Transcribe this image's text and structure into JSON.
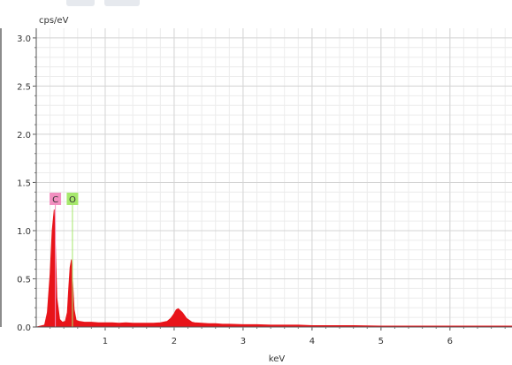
{
  "chart_data": {
    "type": "area",
    "ylabel": "cps/eV",
    "xlabel": "keV",
    "xlim": [
      0.0,
      6.9
    ],
    "ylim": [
      0.0,
      3.1
    ],
    "x_ticks": [
      1,
      2,
      3,
      4,
      5,
      6
    ],
    "y_ticks": [
      0.0,
      0.5,
      1.0,
      1.5,
      2.0,
      2.5,
      3.0
    ],
    "y_tick_labels": [
      "0.0",
      "0.5",
      "1.0",
      "1.5",
      "2.0",
      "2.5",
      "3.0"
    ],
    "grid": true,
    "series": [
      {
        "color": "#e8141a",
        "x": [
          0.0,
          0.12,
          0.16,
          0.2,
          0.23,
          0.26,
          0.28,
          0.3,
          0.34,
          0.38,
          0.42,
          0.45,
          0.47,
          0.49,
          0.51,
          0.53,
          0.55,
          0.58,
          0.62,
          0.7,
          0.8,
          0.9,
          1.0,
          1.1,
          1.2,
          1.3,
          1.4,
          1.5,
          1.6,
          1.7,
          1.8,
          1.9,
          1.95,
          2.0,
          2.03,
          2.06,
          2.09,
          2.12,
          2.15,
          2.18,
          2.22,
          2.26,
          2.3,
          2.4,
          2.5,
          2.6,
          2.7,
          2.8,
          3.0,
          3.2,
          3.4,
          3.6,
          3.8,
          4.0,
          4.3,
          4.6,
          5.0,
          5.4,
          5.8,
          6.2,
          6.6,
          6.9
        ],
        "values": [
          0.0,
          0.02,
          0.15,
          0.55,
          1.0,
          1.22,
          0.8,
          0.3,
          0.08,
          0.05,
          0.06,
          0.15,
          0.4,
          0.62,
          0.7,
          0.45,
          0.18,
          0.07,
          0.06,
          0.05,
          0.05,
          0.045,
          0.045,
          0.045,
          0.04,
          0.045,
          0.04,
          0.04,
          0.04,
          0.04,
          0.045,
          0.06,
          0.09,
          0.14,
          0.18,
          0.19,
          0.17,
          0.15,
          0.12,
          0.09,
          0.07,
          0.05,
          0.045,
          0.04,
          0.035,
          0.035,
          0.03,
          0.03,
          0.025,
          0.025,
          0.02,
          0.02,
          0.02,
          0.015,
          0.015,
          0.015,
          0.01,
          0.01,
          0.01,
          0.01,
          0.01,
          0.01
        ]
      }
    ],
    "element_markers": [
      {
        "label": "C",
        "energy": 0.277,
        "color": "#f28fc0"
      },
      {
        "label": "O",
        "energy": 0.525,
        "color": "#a6e86c"
      }
    ]
  }
}
